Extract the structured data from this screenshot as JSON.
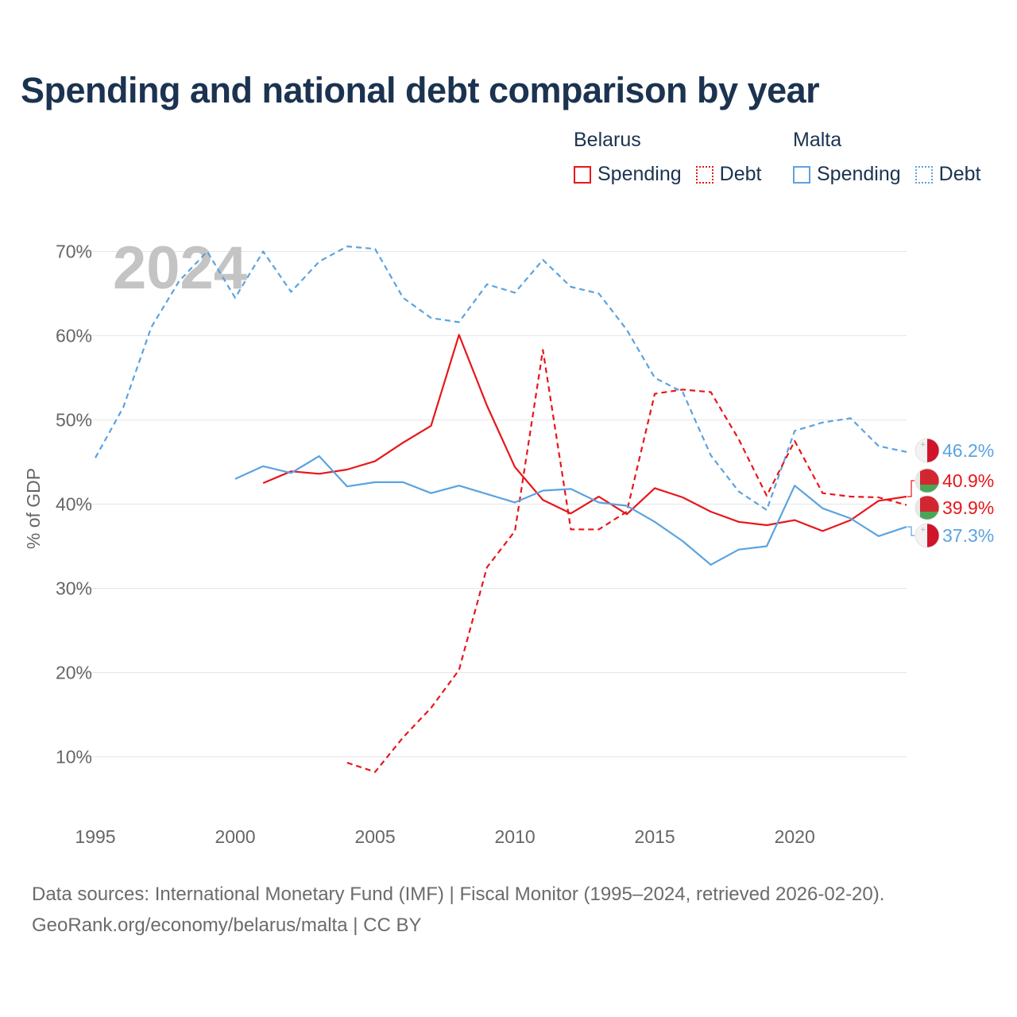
{
  "title": "Spending and national debt comparison by year",
  "legend": {
    "groups": [
      {
        "name": "Belarus",
        "color": "#e8161b",
        "items": [
          {
            "label": "Spending",
            "style": "solid"
          },
          {
            "label": "Debt",
            "style": "dotted"
          }
        ]
      },
      {
        "name": "Malta",
        "color": "#5ba3e0",
        "items": [
          {
            "label": "Spending",
            "style": "solid"
          },
          {
            "label": "Debt",
            "style": "dotted"
          }
        ]
      }
    ]
  },
  "year_watermark": "2024",
  "sources": {
    "line1": "Data sources: International Monetary Fund (IMF) | Fiscal Monitor (1995–2024, retrieved 2026-02-20).",
    "line2": "GeoRank.org/economy/belarus/malta | CC BY"
  },
  "chart_data": {
    "type": "line",
    "title": "Spending and national debt comparison by year",
    "xlabel": "",
    "ylabel": "% of GDP",
    "xlim": [
      1995,
      2024
    ],
    "ylim": [
      3.5,
      72
    ],
    "x_ticks": [
      1995,
      2000,
      2005,
      2010,
      2015,
      2020
    ],
    "y_ticks": [
      10,
      20,
      30,
      40,
      50,
      60,
      70
    ],
    "y_tick_labels": [
      "10%",
      "20%",
      "30%",
      "40%",
      "50%",
      "60%",
      "70%"
    ],
    "grid": true,
    "series": [
      {
        "name": "Malta Debt",
        "country": "Malta",
        "metric": "Debt",
        "color": "#5ba3e0",
        "dash": true,
        "end_label": "46.2%",
        "flag": "malta",
        "points": [
          [
            1995,
            45.5
          ],
          [
            1996,
            51.5
          ],
          [
            1997,
            61
          ],
          [
            1998,
            66.5
          ],
          [
            1999,
            70
          ],
          [
            2000,
            64.5
          ],
          [
            2001,
            70
          ],
          [
            2002,
            65.2
          ],
          [
            2003,
            68.8
          ],
          [
            2004,
            70.6
          ],
          [
            2005,
            70.3
          ],
          [
            2006,
            64.5
          ],
          [
            2007,
            62.1
          ],
          [
            2008,
            61.6
          ],
          [
            2009,
            66.1
          ],
          [
            2010,
            65.1
          ],
          [
            2011,
            69
          ],
          [
            2012,
            65.8
          ],
          [
            2013,
            65
          ],
          [
            2014,
            60.7
          ],
          [
            2015,
            55
          ],
          [
            2016,
            53.3
          ],
          [
            2017,
            45.8
          ],
          [
            2018,
            41.5
          ],
          [
            2019,
            39.3
          ],
          [
            2020,
            48.7
          ],
          [
            2021,
            49.7
          ],
          [
            2022,
            50.2
          ],
          [
            2023,
            46.9
          ],
          [
            2024,
            46.2
          ]
        ]
      },
      {
        "name": "Belarus Spending",
        "country": "Belarus",
        "metric": "Spending",
        "color": "#e8161b",
        "dash": false,
        "end_label": "40.9%",
        "flag": "belarus",
        "points": [
          [
            2001,
            42.5
          ],
          [
            2002,
            43.9
          ],
          [
            2003,
            43.6
          ],
          [
            2004,
            44.1
          ],
          [
            2005,
            45.1
          ],
          [
            2006,
            47.3
          ],
          [
            2007,
            49.3
          ],
          [
            2008,
            60.1
          ],
          [
            2009,
            51.7
          ],
          [
            2010,
            44.4
          ],
          [
            2011,
            40.5
          ],
          [
            2012,
            38.9
          ],
          [
            2013,
            40.9
          ],
          [
            2014,
            38.8
          ],
          [
            2015,
            41.9
          ],
          [
            2016,
            40.8
          ],
          [
            2017,
            39.1
          ],
          [
            2018,
            37.9
          ],
          [
            2019,
            37.5
          ],
          [
            2020,
            38.1
          ],
          [
            2021,
            36.8
          ],
          [
            2022,
            38.1
          ],
          [
            2023,
            40.4
          ],
          [
            2024,
            40.9
          ]
        ]
      },
      {
        "name": "Belarus Debt",
        "country": "Belarus",
        "metric": "Debt",
        "color": "#e8161b",
        "dash": true,
        "end_label": "39.9%",
        "flag": "belarus",
        "points": [
          [
            2004,
            9.3
          ],
          [
            2005,
            8.2
          ],
          [
            2006,
            12.3
          ],
          [
            2007,
            15.8
          ],
          [
            2008,
            20.3
          ],
          [
            2009,
            32.5
          ],
          [
            2010,
            36.8
          ],
          [
            2011,
            58.3
          ],
          [
            2012,
            37
          ],
          [
            2013,
            37
          ],
          [
            2014,
            39.1
          ],
          [
            2015,
            53.1
          ],
          [
            2016,
            53.6
          ],
          [
            2017,
            53.3
          ],
          [
            2018,
            47.7
          ],
          [
            2019,
            41
          ],
          [
            2020,
            47.5
          ],
          [
            2021,
            41.3
          ],
          [
            2022,
            40.9
          ],
          [
            2023,
            40.8
          ],
          [
            2024,
            39.9
          ]
        ]
      },
      {
        "name": "Malta Spending",
        "country": "Malta",
        "metric": "Spending",
        "color": "#5ba3e0",
        "dash": false,
        "end_label": "37.3%",
        "flag": "malta",
        "points": [
          [
            2000,
            43
          ],
          [
            2001,
            44.5
          ],
          [
            2002,
            43.7
          ],
          [
            2003,
            45.7
          ],
          [
            2004,
            42.1
          ],
          [
            2005,
            42.6
          ],
          [
            2006,
            42.6
          ],
          [
            2007,
            41.3
          ],
          [
            2008,
            42.2
          ],
          [
            2009,
            41.2
          ],
          [
            2010,
            40.2
          ],
          [
            2011,
            41.6
          ],
          [
            2012,
            41.8
          ],
          [
            2013,
            40.2
          ],
          [
            2014,
            39.8
          ],
          [
            2015,
            37.9
          ],
          [
            2016,
            35.6
          ],
          [
            2017,
            32.8
          ],
          [
            2018,
            34.6
          ],
          [
            2019,
            35
          ],
          [
            2020,
            42.2
          ],
          [
            2021,
            39.5
          ],
          [
            2022,
            38.3
          ],
          [
            2023,
            36.2
          ],
          [
            2024,
            37.3
          ]
        ]
      }
    ]
  }
}
